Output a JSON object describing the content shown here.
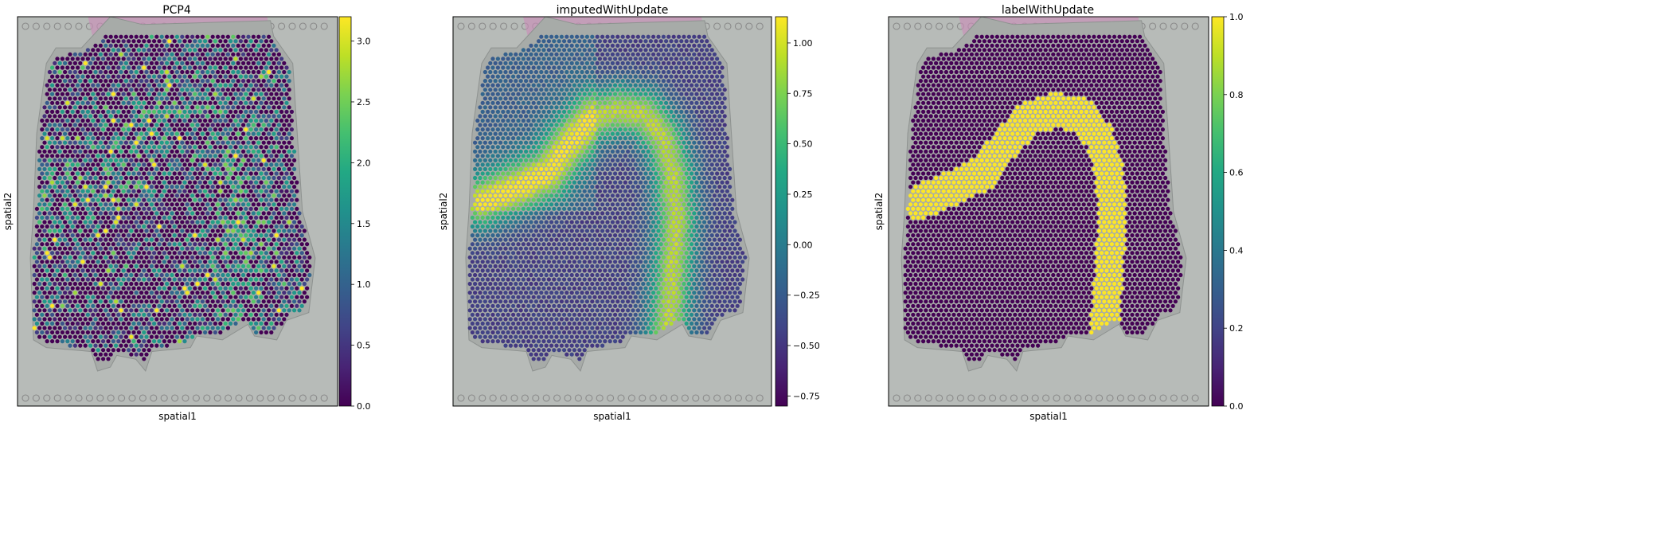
{
  "chart_data": [
    {
      "type": "scatter",
      "title": "PCP4",
      "xlabel": "spatial1",
      "ylabel": "spatial2",
      "colormap": "viridis",
      "colorbar": {
        "range": [
          0.0,
          3.2
        ],
        "ticks": [
          0.0,
          0.5,
          1.0,
          1.5,
          2.0,
          2.5,
          3.0
        ],
        "tick_labels": [
          "0.0",
          "0.5",
          "1.0",
          "1.5",
          "2.0",
          "2.5",
          "3.0"
        ]
      },
      "pattern": "sparse",
      "grid": false
    },
    {
      "type": "scatter",
      "title": "imputedWithUpdate",
      "xlabel": "spatial1",
      "ylabel": "spatial2",
      "colormap": "viridis",
      "colorbar": {
        "range": [
          -0.8,
          1.13
        ],
        "ticks": [
          -0.75,
          -0.5,
          -0.25,
          0.0,
          0.25,
          0.5,
          0.75,
          1.0
        ],
        "tick_labels": [
          "−0.75",
          "−0.50",
          "−0.25",
          "0.00",
          "0.25",
          "0.50",
          "0.75",
          "1.00"
        ]
      },
      "pattern": "smooth",
      "grid": false
    },
    {
      "type": "scatter",
      "title": "labelWithUpdate",
      "xlabel": "spatial1",
      "ylabel": "spatial2",
      "colormap": "viridis",
      "colorbar": {
        "range": [
          0.0,
          1.0
        ],
        "ticks": [
          0.0,
          0.2,
          0.4,
          0.6,
          0.8,
          1.0
        ],
        "tick_labels": [
          "0.0",
          "0.2",
          "0.4",
          "0.6",
          "0.8",
          "1.0"
        ]
      },
      "pattern": "binary",
      "grid": false
    }
  ],
  "colors": {
    "tissue_background": "#b7bbb8",
    "tissue_edge": "#8e9290",
    "stain_pink": "#c98fb8",
    "fiducial_ring": "#8a8a8a",
    "low": "#440154",
    "high": "#fde725"
  }
}
